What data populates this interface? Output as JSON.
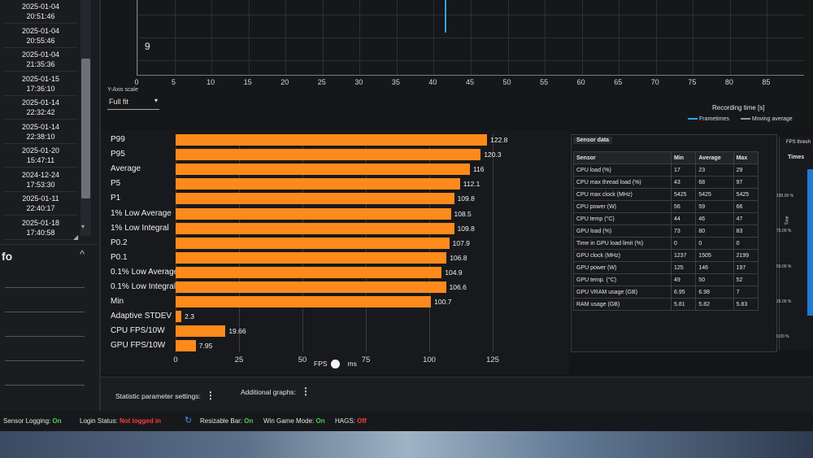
{
  "sidebar": {
    "recordings": [
      {
        "date": "2025-01-04",
        "time": "20:51:46"
      },
      {
        "date": "2025-01-04",
        "time": "20:55:46"
      },
      {
        "date": "2025-01-04",
        "time": "21:35:36"
      },
      {
        "date": "2025-01-15",
        "time": "17:36:10"
      },
      {
        "date": "2025-01-14",
        "time": "22:32:42"
      },
      {
        "date": "2025-01-14",
        "time": "22:38:10"
      },
      {
        "date": "2025-01-20",
        "time": "15:47:11"
      },
      {
        "date": "2024-12-24",
        "time": "17:53:30"
      },
      {
        "date": "2025-01-11",
        "time": "22:40:17"
      },
      {
        "date": "2025-01-18",
        "time": "17:40:58"
      }
    ],
    "info_title": "fo",
    "info_chevron": "^"
  },
  "frametime_chart": {
    "y_tick_label": "9",
    "x_ticks": [
      0,
      5,
      10,
      15,
      20,
      25,
      30,
      35,
      40,
      45,
      50,
      55,
      60,
      65,
      70,
      75,
      80,
      85
    ],
    "x_label": "Recording time [s]",
    "y_axis_scale_label": "Y-Axis scale",
    "y_axis_scale_value": "Full fit",
    "legend": [
      "Frametimes",
      "Moving average"
    ],
    "series_color": "#2aa6ff",
    "moving_avg_color": "#9a9a9a",
    "x_max": 90,
    "spike_at_seconds": 41.5
  },
  "chart_data": {
    "type": "bar",
    "orientation": "horizontal",
    "categories": [
      "P99",
      "P95",
      "Average",
      "P5",
      "P1",
      "1% Low Average",
      "1% Low Integral",
      "P0.2",
      "P0.1",
      "0.1% Low Average",
      "0.1% Low Integral",
      "Min",
      "Adaptive STDEV",
      "CPU FPS/10W",
      "GPU FPS/10W"
    ],
    "values": [
      122.8,
      120.3,
      116,
      112.1,
      109.8,
      108.5,
      109.8,
      107.9,
      106.8,
      104.9,
      106.6,
      100.7,
      2.3,
      19.66,
      7.95
    ],
    "value_labels": [
      "122.8",
      "120.3",
      "116",
      "112.1",
      "109.8",
      "108.5",
      "109.8",
      "107.9",
      "106.8",
      "104.9",
      "106.6",
      "100.7",
      "2.3",
      "19.66",
      "7.95"
    ],
    "x_ticks": [
      0,
      25,
      50,
      75,
      100,
      125
    ],
    "xlim": [
      0,
      125
    ],
    "bar_color": "#ff8a1c",
    "grid": true
  },
  "fps_toggle": {
    "left": "FPS",
    "right": "ms"
  },
  "sensor": {
    "tab": "Sensor data",
    "headers": [
      "Sensor",
      "Min",
      "Average",
      "Max"
    ],
    "rows": [
      [
        "CPU load (%)",
        "17",
        "23",
        "29"
      ],
      [
        "CPU max thread load (%)",
        "43",
        "68",
        "97"
      ],
      [
        "CPU max clock (MHz)",
        "5425",
        "5425",
        "5425"
      ],
      [
        "CPU power (W)",
        "56",
        "59",
        "66"
      ],
      [
        "CPU temp (°C)",
        "44",
        "46",
        "47"
      ],
      [
        "GPU load (%)",
        "73",
        "80",
        "83"
      ],
      [
        "Time in GPU load limit (%)",
        "0",
        "0",
        "0"
      ],
      [
        "GPU clock (MHz)",
        "1237",
        "1505",
        "2199"
      ],
      [
        "GPU power (W)",
        "125",
        "146",
        "197"
      ],
      [
        "GPU temp. (°C)",
        "49",
        "50",
        "52"
      ],
      [
        "GPU VRAM usage (GB)",
        "6.95",
        "6.98",
        "7"
      ],
      [
        "RAM usage (GB)",
        "5.81",
        "5.82",
        "5.83"
      ]
    ]
  },
  "threshold": {
    "tab": "FPS thresh",
    "column": "Times",
    "axis_label": "Time",
    "ticks": [
      "100.00 %",
      "75.00 %",
      "50.00 %",
      "25.00 %",
      "0.00 %"
    ],
    "bar_color": "#1f7bd6"
  },
  "settings": {
    "statistic_label": "Statistic parameter settings:",
    "additional_graphs_label": "Additional graphs:",
    "kebab": "⋮"
  },
  "status": {
    "sensor_logging_label": "Sensor Logging:",
    "sensor_logging_value": "On",
    "login_label": "Login Status:",
    "login_value": "Not logged in",
    "refresh_icon": "↻",
    "resizable_bar_label": "Resizable Bar:",
    "resizable_bar_value": "On",
    "game_mode_label": "Win Game Mode:",
    "game_mode_value": "On",
    "hags_label": "HAGS:",
    "hags_value": "Off"
  }
}
